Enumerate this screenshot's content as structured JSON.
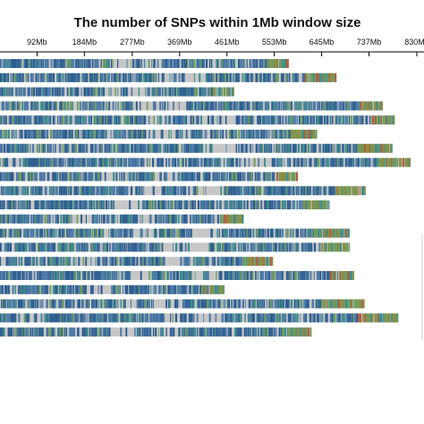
{
  "chart_data": {
    "type": "heatmap",
    "title": "The number of SNPs within 1Mb window size",
    "xlabel": "",
    "ylabel": "",
    "x_unit": "Mb",
    "x_ticks": [
      {
        "value": 92,
        "label": "92Mb"
      },
      {
        "value": 184,
        "label": "184Mb"
      },
      {
        "value": 277,
        "label": "277Mb"
      },
      {
        "value": 369,
        "label": "369Mb"
      },
      {
        "value": 461,
        "label": "461Mb"
      },
      {
        "value": 553,
        "label": "553Mb"
      },
      {
        "value": 645,
        "label": "645Mb"
      },
      {
        "value": 737,
        "label": "737Mb"
      },
      {
        "value": 830,
        "label": "830Mb"
      }
    ],
    "xlim": [
      20,
      830
    ],
    "chromosome_lengths_mb": [
      580,
      673,
      475,
      764,
      787,
      636,
      783,
      817,
      597,
      729,
      659,
      493,
      697,
      698,
      550,
      708,
      456,
      727,
      794,
      625
    ],
    "color_scale": [
      "#c7c7c7",
      "#2b5c8f",
      "#4a78a8",
      "#3a8a8a",
      "#6a9a5a",
      "#8c8a3a",
      "#b05a3a"
    ],
    "legend": "color bar (partially visible, right edge)"
  }
}
